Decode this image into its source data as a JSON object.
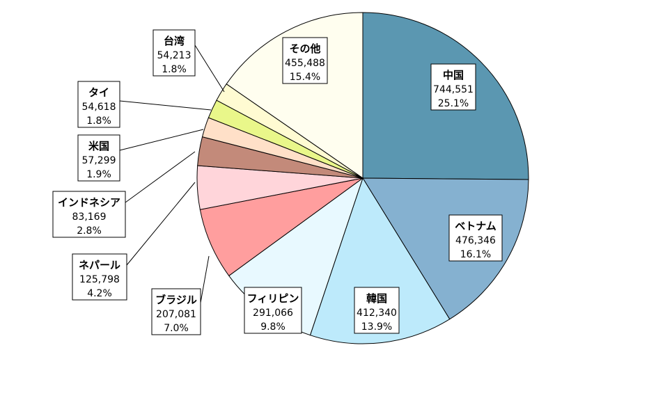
{
  "chart_data": {
    "type": "pie",
    "title": "",
    "start": "12 o'clock",
    "direction": "clockwise",
    "slices": [
      {
        "name": "中国",
        "value": 744551,
        "value_label": "744,551",
        "percent_label": "25.1%",
        "color": "#5B97B1"
      },
      {
        "name": "ベトナム",
        "value": 476346,
        "value_label": "476,346",
        "percent_label": "16.1%",
        "color": "#85B1D0"
      },
      {
        "name": "韓国",
        "value": 412340,
        "value_label": "412,340",
        "percent_label": "13.9%",
        "color": "#BDEAFB"
      },
      {
        "name": "フィリピン",
        "value": 291066,
        "value_label": "291,066",
        "percent_label": "9.8%",
        "color": "#E8F9FF"
      },
      {
        "name": "ブラジル",
        "value": 207081,
        "value_label": "207,081",
        "percent_label": "7.0%",
        "color": "#FF9E9E"
      },
      {
        "name": "ネパール",
        "value": 125798,
        "value_label": "125,798",
        "percent_label": "4.2%",
        "color": "#FFD5DA"
      },
      {
        "name": "インドネシア",
        "value": 83169,
        "value_label": "83,169",
        "percent_label": "2.8%",
        "color": "#C38A7A"
      },
      {
        "name": "米国",
        "value": 57299,
        "value_label": "57,299",
        "percent_label": "1.9%",
        "color": "#FFE0C8"
      },
      {
        "name": "タイ",
        "value": 54618,
        "value_label": "54,618",
        "percent_label": "1.8%",
        "color": "#E9F78A"
      },
      {
        "name": "台湾",
        "value": 54213,
        "value_label": "54,213",
        "percent_label": "1.8%",
        "color": "#FFFBD2"
      },
      {
        "name": "その他",
        "value": 455488,
        "value_label": "455,488",
        "percent_label": "15.4%",
        "color": "#FFFEEF"
      }
    ]
  }
}
